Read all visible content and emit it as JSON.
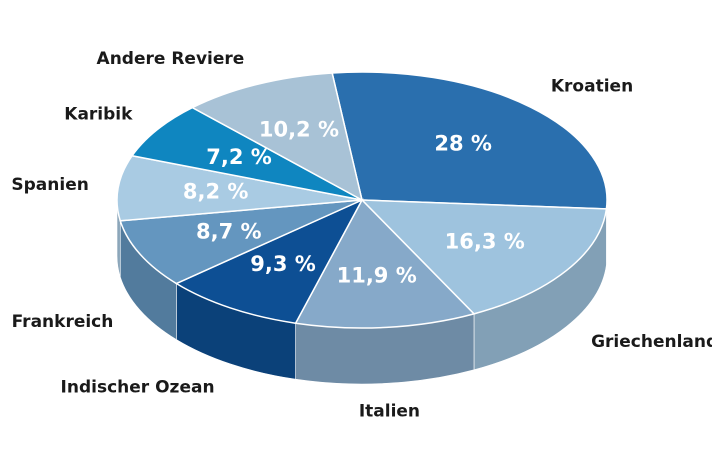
{
  "chart_data": {
    "type": "pie",
    "categories": [
      "Kroatien",
      "Griechenland",
      "Italien",
      "Indischer Ozean",
      "Frankreich",
      "Spanien",
      "Karibik",
      "Andere Reviere"
    ],
    "values": [
      28,
      16.3,
      11.9,
      9.3,
      8.7,
      8.2,
      7.2,
      10.2
    ],
    "value_labels": [
      "28 %",
      "16,3 %",
      "11,9 %",
      "9,3 %",
      "8,7 %",
      "8,2 %",
      "7,2 %",
      "10,2 %"
    ],
    "colors": [
      "#2a6fae",
      "#9ec3de",
      "#86a9c9",
      "#0d4f94",
      "#6496bf",
      "#a9cbe3",
      "#0f86c0",
      "#a8c2d6"
    ]
  }
}
